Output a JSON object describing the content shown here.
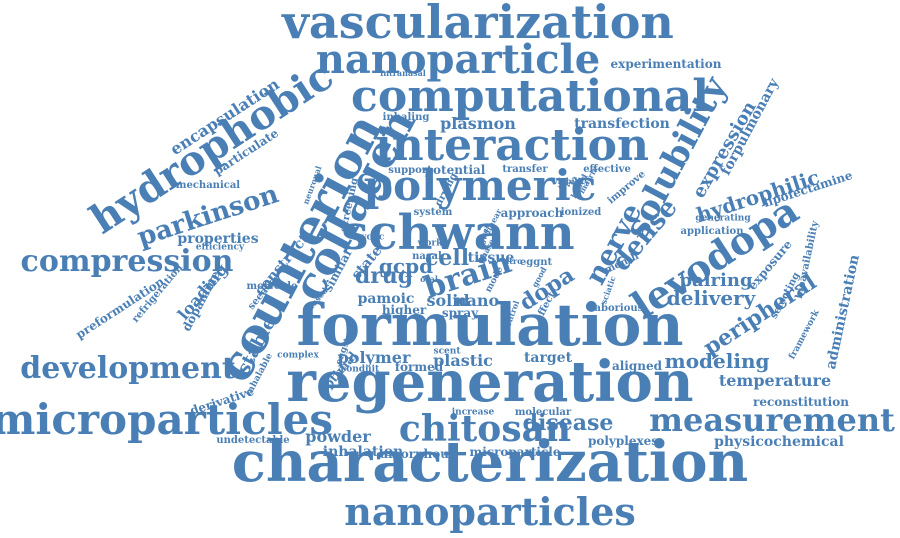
{
  "word_color": "#4a7fb5",
  "words": [
    "vascularization",
    "nanoparticle",
    "computational",
    "interaction",
    "polymeric",
    "schwann",
    "counterion",
    "collagen",
    "hydrophobic",
    "formulation",
    "regeneration",
    "characterization",
    "nanoparticles",
    "microparticles",
    "development",
    "compression",
    "parkinson",
    "levodopa",
    "solubility",
    "chitosan",
    "measurement",
    "brain",
    "drug",
    "gcpd",
    "cell",
    "nerve",
    "dense",
    "dopa",
    "delivery",
    "pairing",
    "hydrophilic",
    "expression",
    "forpulmonary",
    "lipofectamine",
    "peripheral",
    "administration",
    "bioavailability",
    "modeling",
    "temperature",
    "reconstitution",
    "physicochemical",
    "polyplexes",
    "disease",
    "plastic",
    "polymer",
    "target",
    "powder",
    "inhalation",
    "amorphous",
    "microparticle",
    "undetectable",
    "derivative",
    "preformulation",
    "dopamine",
    "stable",
    "loading",
    "properties",
    "efficiency",
    "encapsulation",
    "particulate",
    "mechanical",
    "plasmon",
    "transfection",
    "inhaling",
    "support",
    "potential",
    "transfer",
    "effective",
    "experimentation",
    "intranasal",
    "system",
    "approach",
    "ionized",
    "application",
    "generating",
    "exposure",
    "selecting",
    "framework",
    "nano",
    "spray",
    "pamoic",
    "higher",
    "molecule",
    "seeded",
    "construct",
    "neuronal",
    "screening",
    "similar",
    "state",
    "improve",
    "aligned",
    "formed",
    "conduit",
    "complex",
    "optimal",
    "increase",
    "molecular",
    "laborious",
    "month",
    "effect",
    "refrigeration",
    "inhalable",
    "solid",
    "tissue",
    "linear",
    "drying",
    "viability",
    "level",
    "based",
    "phase",
    "eggnt",
    "vitro",
    "oral",
    "nasal",
    "work",
    "cyclic",
    "lower",
    "control",
    "matrix",
    "engsta",
    "scent",
    "fused",
    "sciatic",
    "good",
    "mode"
  ]
}
